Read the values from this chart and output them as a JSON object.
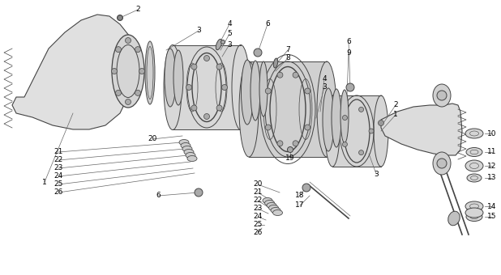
{
  "background_color": "#ffffff",
  "figure_width": 6.18,
  "figure_height": 3.4,
  "dpi": 100,
  "drawing_color": "#444444",
  "label_color": "#000000",
  "label_fontsize": 6.5,
  "lw": 0.7
}
